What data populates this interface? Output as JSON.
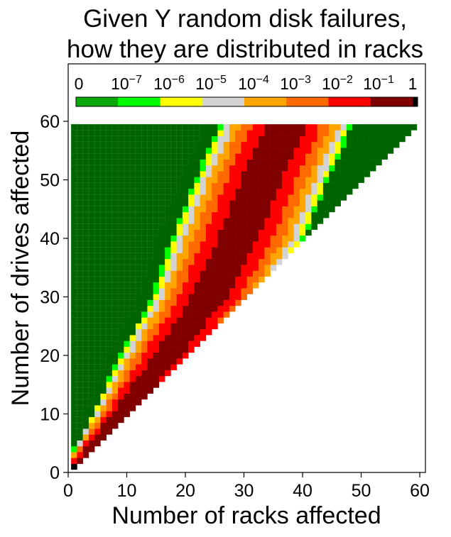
{
  "chart_data": {
    "type": "heatmap",
    "title_lines": [
      "Given Y random disk failures,",
      "how they are distributed in racks"
    ],
    "xlabel": "Number of racks affected",
    "ylabel": "Number of drives affected",
    "xlim": [
      0,
      60
    ],
    "ylim": [
      0,
      60
    ],
    "x_ticks": [
      "0",
      "10",
      "20",
      "30",
      "40",
      "50",
      "60"
    ],
    "y_ticks": [
      "0",
      "10",
      "20",
      "30",
      "40",
      "50",
      "60"
    ],
    "colorbar": {
      "placement": "top",
      "labels": [
        {
          "base": "0",
          "exp": ""
        },
        {
          "base": "10",
          "exp": "−7"
        },
        {
          "base": "10",
          "exp": "−6"
        },
        {
          "base": "10",
          "exp": "−5"
        },
        {
          "base": "10",
          "exp": "−4"
        },
        {
          "base": "10",
          "exp": "−3"
        },
        {
          "base": "10",
          "exp": "−2"
        },
        {
          "base": "10",
          "exp": "−1"
        },
        {
          "base": "1",
          "exp": ""
        }
      ],
      "bands": [
        {
          "range": "0 to 1e-7",
          "color": "#0aa80a"
        },
        {
          "range": "1e-7 to 1e-6",
          "color": "#00ff00"
        },
        {
          "range": "1e-6 to 1e-5",
          "color": "#ffff00"
        },
        {
          "range": "1e-5 to 1e-4",
          "color": "#d3d3d3"
        },
        {
          "range": "1e-4 to 1e-3",
          "color": "#ffa500"
        },
        {
          "range": "1e-3 to 1e-2",
          "color": "#ff6a00"
        },
        {
          "range": "1e-2 to 1e-1",
          "color": "#ff0000"
        },
        {
          "range": "1e-1 to 1",
          "color": "#800000"
        },
        {
          "range": "1",
          "color": "#000000"
        }
      ]
    },
    "background_color": "#006400",
    "grid": false,
    "description_of_data": "Probability that Y failed drives (1..59) fall into exactly X racks (1..Y); cells with X > Y are empty.",
    "row_bands_sampled": [
      {
        "y": 1,
        "dark_red_center": 1,
        "dark_red_halfwidth": 0
      },
      {
        "y": 10,
        "dark_red_center": 9,
        "dark_red_halfwidth": 1
      },
      {
        "y": 20,
        "dark_red_center": 17,
        "dark_red_halfwidth": 2
      },
      {
        "y": 30,
        "dark_red_center": 24,
        "dark_red_halfwidth": 2.5
      },
      {
        "y": 40,
        "dark_red_center": 29,
        "dark_red_halfwidth": 3
      },
      {
        "y": 50,
        "dark_red_center": 33,
        "dark_red_halfwidth": 3
      },
      {
        "y": 59,
        "dark_red_center": 37,
        "dark_red_halfwidth": 3
      }
    ]
  }
}
